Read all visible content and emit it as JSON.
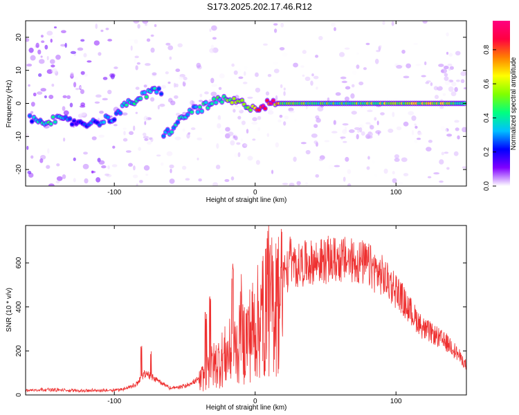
{
  "title": "S173.2025.202.17.46.R12",
  "chart_data": [
    {
      "type": "heatmap",
      "xlabel": "Height of straight line (km)",
      "ylabel": "Frequency (Hz)",
      "xlim": [
        -163,
        150
      ],
      "ylim": [
        -25,
        25
      ],
      "x_ticks": [
        -100,
        0,
        100
      ],
      "y_ticks": [
        -20,
        -10,
        0,
        10,
        20
      ],
      "colorbar": {
        "label": "Normalized spectral amplitude",
        "range": [
          0,
          0.97
        ],
        "ticks": [
          0.0,
          0.2,
          0.4,
          0.6,
          0.8
        ],
        "colormap": [
          "#ffffff",
          "#8000ff",
          "#0000ff",
          "#00c0ff",
          "#00ff80",
          "#80ff00",
          "#ffff00",
          "#ff8000",
          "#ff0040",
          "#ff0080"
        ]
      },
      "ridge": [
        {
          "x": -160,
          "freq": -5,
          "amp": 0.25
        },
        {
          "x": -145,
          "freq": -5,
          "amp": 0.45
        },
        {
          "x": -130,
          "freq": -5.5,
          "amp": 0.2
        },
        {
          "x": -115,
          "freq": -6,
          "amp": 0.25
        },
        {
          "x": -100,
          "freq": -4,
          "amp": 0.3
        },
        {
          "x": -90,
          "freq": 0,
          "amp": 0.35
        },
        {
          "x": -80,
          "freq": 2,
          "amp": 0.4
        },
        {
          "x": -70,
          "freq": 4,
          "amp": 0.35
        },
        {
          "x": -65,
          "freq": -10,
          "amp": 0.3
        },
        {
          "x": -55,
          "freq": -6,
          "amp": 0.35
        },
        {
          "x": -45,
          "freq": -2,
          "amp": 0.35
        },
        {
          "x": -35,
          "freq": -1,
          "amp": 0.4
        },
        {
          "x": -25,
          "freq": 1,
          "amp": 0.45
        },
        {
          "x": -15,
          "freq": 0.5,
          "amp": 0.55
        },
        {
          "x": -5,
          "freq": -0.5,
          "amp": 0.5
        },
        {
          "x": 0,
          "freq": -1.5,
          "amp": 0.7
        },
        {
          "x": 10,
          "freq": 0,
          "amp": 0.9
        },
        {
          "x": 20,
          "freq": 0,
          "amp": 0.5
        },
        {
          "x": 50,
          "freq": 0,
          "amp": 0.45
        },
        {
          "x": 80,
          "freq": 0,
          "amp": 0.5
        },
        {
          "x": 100,
          "freq": 0,
          "amp": 0.55
        },
        {
          "x": 125,
          "freq": 0,
          "amp": 0.6
        },
        {
          "x": 150,
          "freq": 0,
          "amp": 0.45
        }
      ]
    },
    {
      "type": "line",
      "xlabel": "Height of straight line (km)",
      "ylabel": "SNR (10 * v/v)",
      "xlim": [
        -163,
        150
      ],
      "ylim": [
        0,
        770
      ],
      "x_ticks": [
        -100,
        0,
        100
      ],
      "y_ticks": [
        0,
        200,
        400,
        600
      ],
      "color": "#ee3030",
      "envelope": {
        "x": [
          -163,
          -150,
          -130,
          -110,
          -95,
          -85,
          -78,
          -70,
          -60,
          -50,
          -40,
          -35,
          -30,
          -20,
          -10,
          0,
          10,
          20,
          30,
          40,
          50,
          60,
          70,
          80,
          90,
          100,
          110,
          120,
          130,
          140,
          150
        ],
        "y": [
          20,
          25,
          20,
          20,
          25,
          45,
          100,
          70,
          30,
          40,
          70,
          120,
          160,
          220,
          280,
          380,
          480,
          550,
          590,
          600,
          610,
          615,
          610,
          590,
          540,
          480,
          380,
          300,
          260,
          220,
          130
        ]
      },
      "spikes": {
        "x": [
          -81,
          -74,
          -35,
          -32,
          -16,
          -10,
          5,
          9,
          15,
          25
        ],
        "y": [
          240,
          200,
          380,
          470,
          600,
          550,
          640,
          770,
          700,
          730
        ]
      }
    }
  ]
}
